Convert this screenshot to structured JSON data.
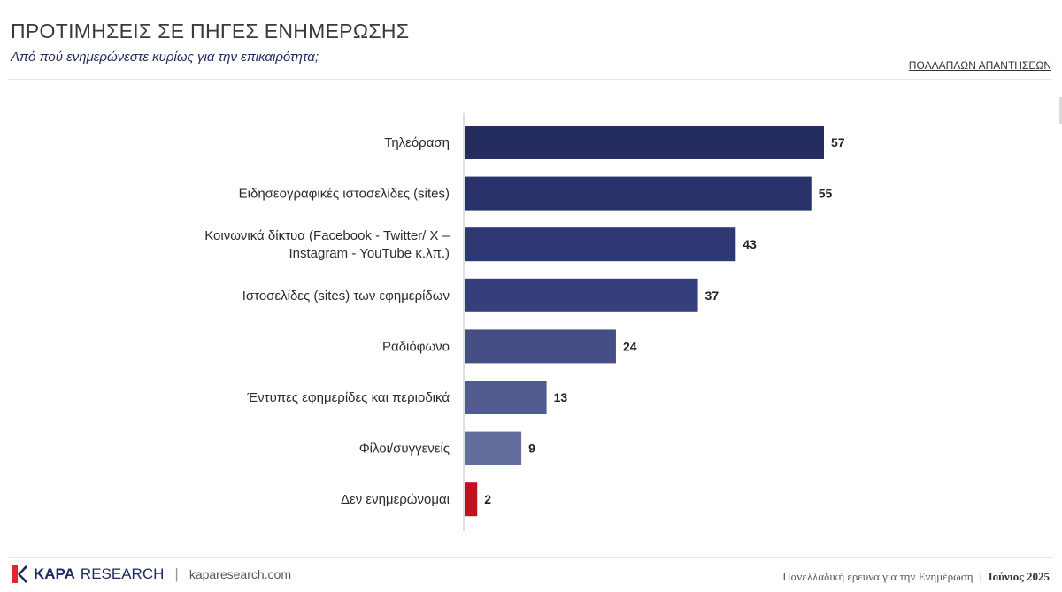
{
  "header": {
    "title": "ΠΡΟΤΙΜΗΣΕΙΣ ΣΕ ΠΗΓΕΣ ΕΝΗΜΕΡΩΣΗΣ",
    "subtitle": "Από πού ενημερώνεστε κυρίως για την επικαιρότητα;",
    "note": "ΠΟΛΛΑΠΛΩΝ ΑΠΑΝΤΗΣΕΩΝ"
  },
  "footer": {
    "brand_k": "KAPA",
    "brand_rest": "RESEARCH",
    "site": "kaparesearch.com",
    "survey": "Πανελλαδική έρευνα για την Ενημέρωση",
    "date": "Ιούνιος 2025",
    "logo_icon": "kapa-logo-icon"
  },
  "chart_data": {
    "type": "bar",
    "orientation": "horizontal",
    "title": "",
    "xlabel": "",
    "ylabel": "",
    "xlim": [
      0,
      57
    ],
    "grid": false,
    "legend": "none",
    "categories": [
      [
        "Τηλεόραση"
      ],
      [
        "Ειδησεογραφικές ιστοσελίδες (sites)"
      ],
      [
        "Κοινωνικά δίκτυα (Facebook - Twitter/ X –",
        "Instagram - YouTube κ.λπ.)"
      ],
      [
        "Ιστοσελίδες (sites) των εφημερίδων"
      ],
      [
        "Ραδιόφωνο"
      ],
      [
        "Έντυπες εφημερίδες και περιοδικά"
      ],
      [
        "Φίλοι/συγγενείς"
      ],
      [
        "Δεν ενημερώνομαι"
      ]
    ],
    "values": [
      57,
      55,
      43,
      37,
      24,
      13,
      9,
      2
    ],
    "bar_colors": [
      "#252d5e",
      "#29326a",
      "#2e3873",
      "#343f7c",
      "#454f86",
      "#525c8f",
      "#646e9c",
      "#c0111f"
    ]
  }
}
